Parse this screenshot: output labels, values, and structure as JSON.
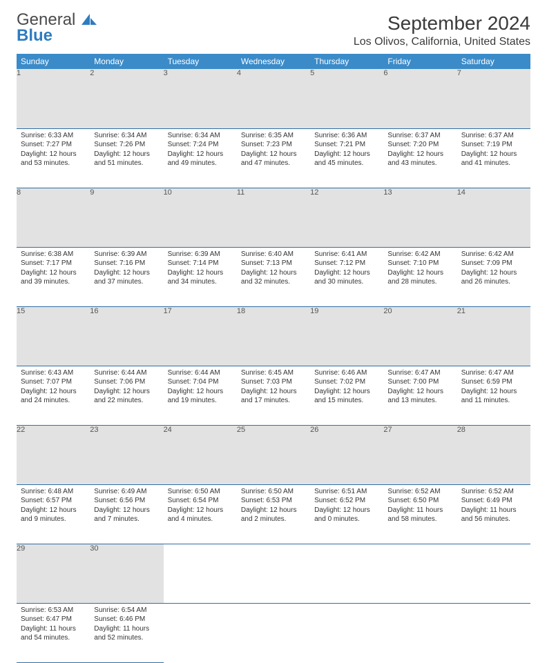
{
  "logo": {
    "main": "General",
    "accent": "Blue"
  },
  "title": "September 2024",
  "location": "Los Olivos, California, United States",
  "colors": {
    "header_bg": "#3b8bc9",
    "header_text": "#ffffff",
    "daynum_bg": "#e2e2e2",
    "daynum_text": "#555555",
    "cell_border": "#2e6da4",
    "body_text": "#333333",
    "logo_accent": "#2e7cc0"
  },
  "weekdays": [
    "Sunday",
    "Monday",
    "Tuesday",
    "Wednesday",
    "Thursday",
    "Friday",
    "Saturday"
  ],
  "weeks": [
    [
      {
        "n": "1",
        "sr": "6:33 AM",
        "ss": "7:27 PM",
        "dl": "12 hours and 53 minutes."
      },
      {
        "n": "2",
        "sr": "6:34 AM",
        "ss": "7:26 PM",
        "dl": "12 hours and 51 minutes."
      },
      {
        "n": "3",
        "sr": "6:34 AM",
        "ss": "7:24 PM",
        "dl": "12 hours and 49 minutes."
      },
      {
        "n": "4",
        "sr": "6:35 AM",
        "ss": "7:23 PM",
        "dl": "12 hours and 47 minutes."
      },
      {
        "n": "5",
        "sr": "6:36 AM",
        "ss": "7:21 PM",
        "dl": "12 hours and 45 minutes."
      },
      {
        "n": "6",
        "sr": "6:37 AM",
        "ss": "7:20 PM",
        "dl": "12 hours and 43 minutes."
      },
      {
        "n": "7",
        "sr": "6:37 AM",
        "ss": "7:19 PM",
        "dl": "12 hours and 41 minutes."
      }
    ],
    [
      {
        "n": "8",
        "sr": "6:38 AM",
        "ss": "7:17 PM",
        "dl": "12 hours and 39 minutes."
      },
      {
        "n": "9",
        "sr": "6:39 AM",
        "ss": "7:16 PM",
        "dl": "12 hours and 37 minutes."
      },
      {
        "n": "10",
        "sr": "6:39 AM",
        "ss": "7:14 PM",
        "dl": "12 hours and 34 minutes."
      },
      {
        "n": "11",
        "sr": "6:40 AM",
        "ss": "7:13 PM",
        "dl": "12 hours and 32 minutes."
      },
      {
        "n": "12",
        "sr": "6:41 AM",
        "ss": "7:12 PM",
        "dl": "12 hours and 30 minutes."
      },
      {
        "n": "13",
        "sr": "6:42 AM",
        "ss": "7:10 PM",
        "dl": "12 hours and 28 minutes."
      },
      {
        "n": "14",
        "sr": "6:42 AM",
        "ss": "7:09 PM",
        "dl": "12 hours and 26 minutes."
      }
    ],
    [
      {
        "n": "15",
        "sr": "6:43 AM",
        "ss": "7:07 PM",
        "dl": "12 hours and 24 minutes."
      },
      {
        "n": "16",
        "sr": "6:44 AM",
        "ss": "7:06 PM",
        "dl": "12 hours and 22 minutes."
      },
      {
        "n": "17",
        "sr": "6:44 AM",
        "ss": "7:04 PM",
        "dl": "12 hours and 19 minutes."
      },
      {
        "n": "18",
        "sr": "6:45 AM",
        "ss": "7:03 PM",
        "dl": "12 hours and 17 minutes."
      },
      {
        "n": "19",
        "sr": "6:46 AM",
        "ss": "7:02 PM",
        "dl": "12 hours and 15 minutes."
      },
      {
        "n": "20",
        "sr": "6:47 AM",
        "ss": "7:00 PM",
        "dl": "12 hours and 13 minutes."
      },
      {
        "n": "21",
        "sr": "6:47 AM",
        "ss": "6:59 PM",
        "dl": "12 hours and 11 minutes."
      }
    ],
    [
      {
        "n": "22",
        "sr": "6:48 AM",
        "ss": "6:57 PM",
        "dl": "12 hours and 9 minutes."
      },
      {
        "n": "23",
        "sr": "6:49 AM",
        "ss": "6:56 PM",
        "dl": "12 hours and 7 minutes."
      },
      {
        "n": "24",
        "sr": "6:50 AM",
        "ss": "6:54 PM",
        "dl": "12 hours and 4 minutes."
      },
      {
        "n": "25",
        "sr": "6:50 AM",
        "ss": "6:53 PM",
        "dl": "12 hours and 2 minutes."
      },
      {
        "n": "26",
        "sr": "6:51 AM",
        "ss": "6:52 PM",
        "dl": "12 hours and 0 minutes."
      },
      {
        "n": "27",
        "sr": "6:52 AM",
        "ss": "6:50 PM",
        "dl": "11 hours and 58 minutes."
      },
      {
        "n": "28",
        "sr": "6:52 AM",
        "ss": "6:49 PM",
        "dl": "11 hours and 56 minutes."
      }
    ],
    [
      {
        "n": "29",
        "sr": "6:53 AM",
        "ss": "6:47 PM",
        "dl": "11 hours and 54 minutes."
      },
      {
        "n": "30",
        "sr": "6:54 AM",
        "ss": "6:46 PM",
        "dl": "11 hours and 52 minutes."
      },
      null,
      null,
      null,
      null,
      null
    ]
  ],
  "labels": {
    "sunrise": "Sunrise:",
    "sunset": "Sunset:",
    "daylight": "Daylight:"
  }
}
